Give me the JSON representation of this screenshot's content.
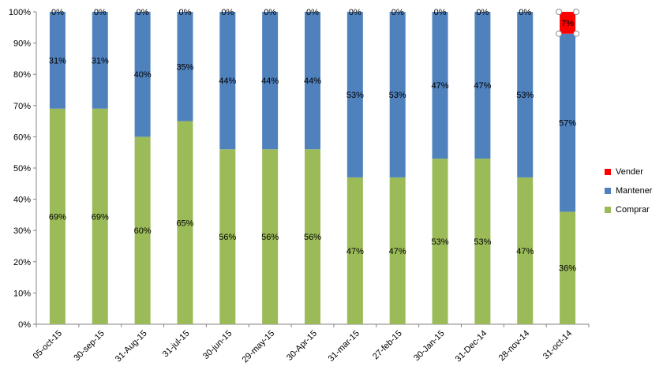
{
  "chart_data": {
    "type": "bar",
    "stacked": true,
    "percent": true,
    "categories": [
      "05-oct-15",
      "30-sep-15",
      "31-Aug-15",
      "31-jul-15",
      "30-jun-15",
      "29-may-15",
      "30-Apr-15",
      "31-mar-15",
      "27-feb-15",
      "30-Jan-15",
      "31-Dec-14",
      "28-nov-14",
      "31-oct-14"
    ],
    "series": [
      {
        "name": "Comprar",
        "color": "#9BBB59",
        "values": [
          69,
          69,
          60,
          65,
          56,
          56,
          56,
          47,
          47,
          53,
          53,
          47,
          36
        ],
        "labels": [
          "69%",
          "69%",
          "60%",
          "65%",
          "56%",
          "56%",
          "56%",
          "47%",
          "47%",
          "53%",
          "53%",
          "47%",
          "36%"
        ]
      },
      {
        "name": "Mantener",
        "color": "#4F81BD",
        "values": [
          31,
          31,
          40,
          35,
          44,
          44,
          44,
          53,
          53,
          47,
          47,
          53,
          57
        ],
        "labels": [
          "31%",
          "31%",
          "40%",
          "35%",
          "44%",
          "44%",
          "44%",
          "53%",
          "53%",
          "47%",
          "47%",
          "53%",
          "57%"
        ]
      },
      {
        "name": "Vender",
        "color": "#FF0000",
        "values": [
          0,
          0,
          0,
          0,
          0,
          0,
          0,
          0,
          0,
          0,
          0,
          0,
          7
        ],
        "labels": [
          "0%",
          "0%",
          "0%",
          "0%",
          "0%",
          "0%",
          "0%",
          "0%",
          "0%",
          "0%",
          "0%",
          "0%",
          "7%"
        ]
      }
    ],
    "y_ticks": [
      "0%",
      "10%",
      "20%",
      "30%",
      "40%",
      "50%",
      "60%",
      "70%",
      "80%",
      "90%",
      "100%"
    ],
    "ylim": [
      0,
      100
    ],
    "grid": false,
    "legend_position": "right",
    "selected_point": {
      "series": "Vender",
      "category": "31-oct-14"
    }
  }
}
